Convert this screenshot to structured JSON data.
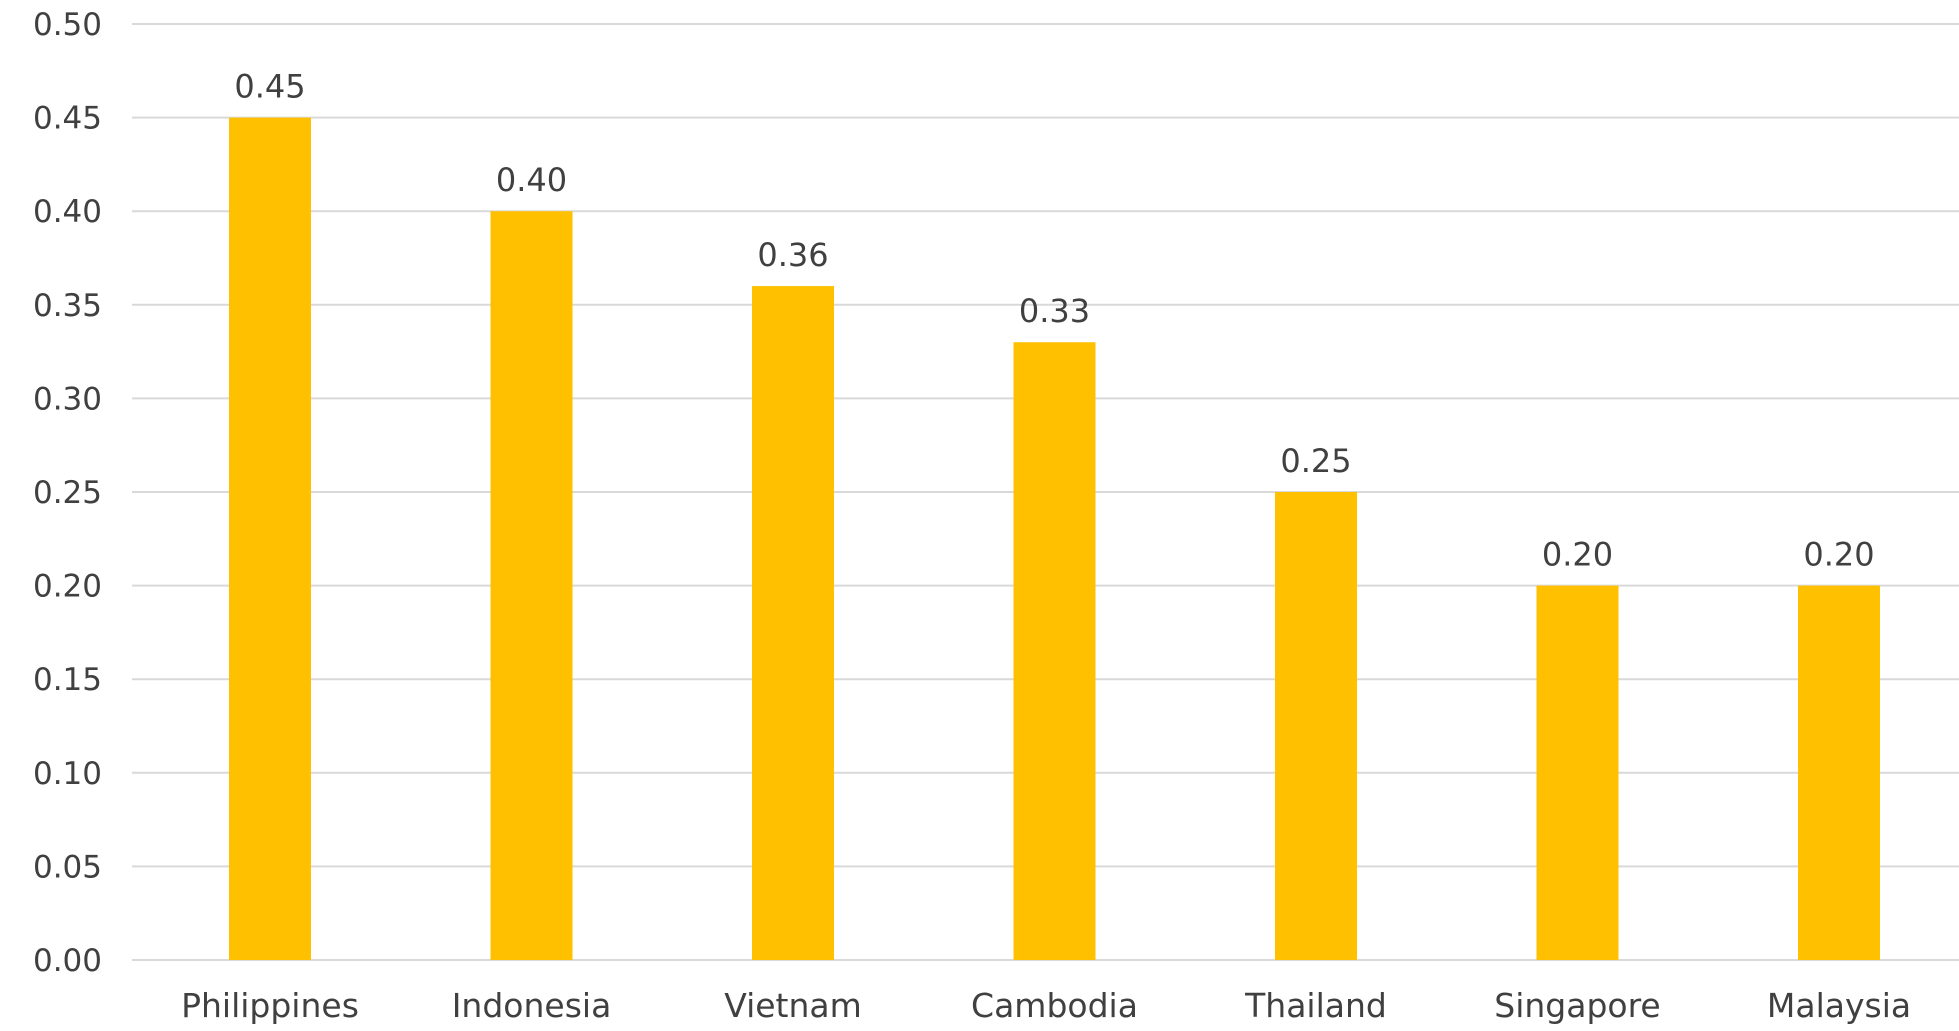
{
  "chart_data": {
    "type": "bar",
    "categories": [
      "Philippines",
      "Indonesia",
      "Vietnam",
      "Cambodia",
      "Thailand",
      "Singapore",
      "Malaysia"
    ],
    "values": [
      0.45,
      0.4,
      0.36,
      0.33,
      0.25,
      0.2,
      0.2
    ],
    "data_labels": [
      "0.45",
      "0.40",
      "0.36",
      "0.33",
      "0.25",
      "0.20",
      "0.20"
    ],
    "yticks": [
      "0.00",
      "0.05",
      "0.10",
      "0.15",
      "0.20",
      "0.25",
      "0.30",
      "0.35",
      "0.40",
      "0.45",
      "0.50"
    ],
    "ylim": [
      0,
      0.5
    ],
    "grid": true,
    "legend": "none",
    "bar_color": "#FFC000",
    "title": "",
    "xlabel": "",
    "ylabel": ""
  }
}
